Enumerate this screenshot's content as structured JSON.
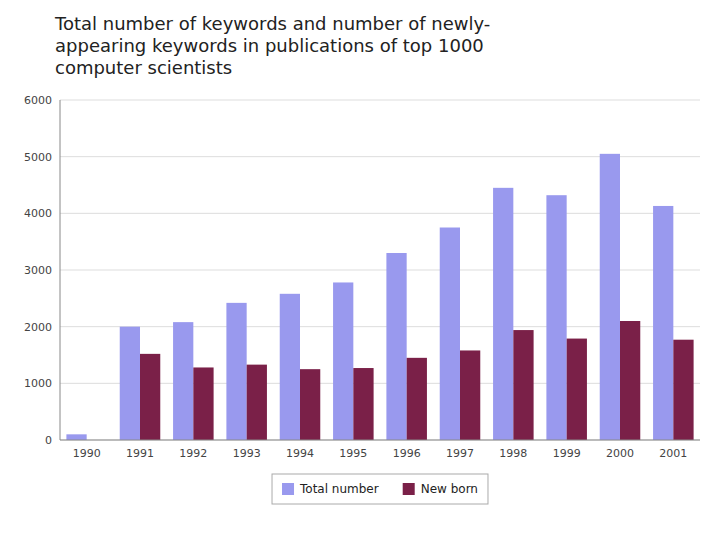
{
  "chart_data": {
    "type": "bar",
    "title": "Total number of keywords and number of newly-\nappearing keywords in publications of top 1000\ncomputer scientists",
    "categories": [
      "1990",
      "1991",
      "1992",
      "1993",
      "1994",
      "1995",
      "1996",
      "1997",
      "1998",
      "1999",
      "2000",
      "2001"
    ],
    "series": [
      {
        "name": "Total number",
        "color": "#9999ee",
        "values": [
          100,
          2000,
          2080,
          2420,
          2580,
          2780,
          3300,
          3750,
          4450,
          4320,
          5050,
          4130
        ]
      },
      {
        "name": "New born",
        "color": "#7a2048",
        "values": [
          0,
          1520,
          1280,
          1330,
          1250,
          1270,
          1450,
          1580,
          1940,
          1790,
          2100,
          1770
        ]
      }
    ],
    "ylim": [
      0,
      6000
    ],
    "yticks": [
      0,
      1000,
      2000,
      3000,
      4000,
      5000,
      6000
    ],
    "grid": true,
    "legend": "bottom"
  }
}
